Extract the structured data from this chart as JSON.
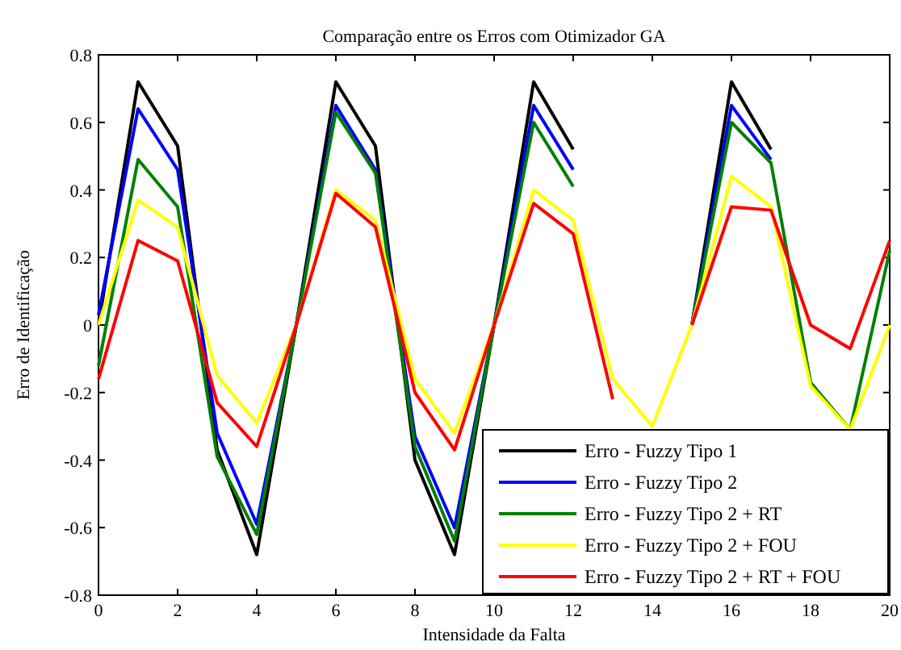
{
  "chart_data": {
    "type": "line",
    "title": "Comparação entre os Erros com Otimizador GA",
    "xlabel": "Intensidade da Falta",
    "ylabel": "Erro de Identificação",
    "x": [
      0,
      1,
      2,
      3,
      4,
      5,
      6,
      7,
      8,
      9,
      10,
      11,
      12,
      13,
      14,
      15,
      16,
      17,
      18,
      19,
      20
    ],
    "series": [
      {
        "name": "Erro - Fuzzy Tipo 1",
        "color": "#000000",
        "values": [
          0,
          0.72,
          0.53,
          -0.37,
          -0.68,
          0,
          0.72,
          0.53,
          -0.4,
          -0.68,
          0,
          0.72,
          0.52,
          null,
          null,
          0,
          0.72,
          0.52,
          null,
          null,
          null
        ]
      },
      {
        "name": "Erro - Fuzzy Tipo 2",
        "color": "#0000ff",
        "values": [
          0.03,
          0.64,
          0.46,
          -0.32,
          -0.59,
          0,
          0.65,
          0.46,
          -0.33,
          -0.6,
          0,
          0.65,
          0.46,
          null,
          null,
          0,
          0.65,
          0.49,
          null,
          null,
          null
        ]
      },
      {
        "name": "Erro - Fuzzy Tipo 2 + RT",
        "color": "#008000",
        "values": [
          -0.12,
          0.49,
          0.35,
          -0.39,
          -0.62,
          0,
          0.63,
          0.45,
          -0.36,
          -0.64,
          0,
          0.6,
          0.41,
          null,
          null,
          0,
          0.6,
          0.48,
          -0.17,
          -0.31,
          0.22
        ]
      },
      {
        "name": "Erro - Fuzzy Tipo 2 + FOU",
        "color": "#ffff00",
        "values": [
          0,
          0.37,
          0.29,
          -0.15,
          -0.29,
          0,
          0.4,
          0.31,
          -0.16,
          -0.32,
          0,
          0.4,
          0.31,
          -0.16,
          -0.3,
          0,
          0.44,
          0.35,
          -0.18,
          -0.31,
          0
        ]
      },
      {
        "name": "Erro - Fuzzy Tipo 2 + RT + FOU",
        "color": "#ff0000",
        "values": [
          -0.16,
          0.25,
          0.19,
          -0.23,
          -0.36,
          0,
          0.39,
          0.29,
          -0.2,
          -0.37,
          0,
          0.36,
          0.27,
          -0.22,
          null,
          0,
          0.35,
          0.34,
          0,
          -0.07,
          0.25
        ]
      }
    ],
    "xlim": [
      0,
      20
    ],
    "xticks": [
      0,
      2,
      4,
      6,
      8,
      10,
      12,
      14,
      16,
      18,
      20
    ],
    "ylim": [
      -0.8,
      0.8
    ],
    "yticks": [
      -0.8,
      -0.6,
      -0.4,
      -0.2,
      0,
      0.2,
      0.4,
      0.6,
      0.8
    ],
    "legend": "bottom right",
    "grid": false
  }
}
